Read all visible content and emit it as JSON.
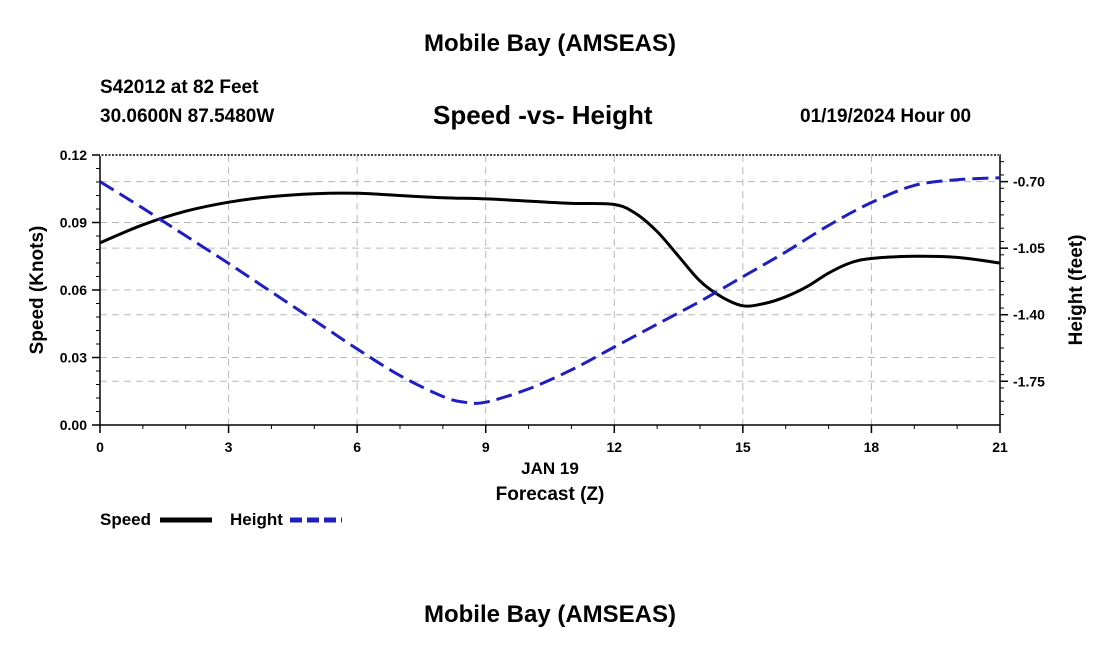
{
  "header": {
    "title": "Mobile Bay (AMSEAS)",
    "station": "S42012 at 82 Feet",
    "coords": "30.0600N  87.5480W",
    "date": "01/19/2024 Hour 00",
    "footer_title": "Mobile Bay (AMSEAS)"
  },
  "chart_data": {
    "type": "line",
    "title": "Speed -vs- Height",
    "xlabel": "Forecast (Z)",
    "xdate": "JAN 19",
    "ylabel": "Speed (Knots)",
    "y2label": "Height (feet)",
    "xlim": [
      0,
      21
    ],
    "ylim": [
      0,
      0.12
    ],
    "y2lim": [
      -1.98,
      -0.56
    ],
    "xticks": [
      "0",
      "3",
      "6",
      "9",
      "12",
      "15",
      "18",
      "21"
    ],
    "yticks": [
      "0.00",
      "0.03",
      "0.06",
      "0.09",
      "0.12"
    ],
    "y2ticks": [
      "-0.70",
      "-1.05",
      "-1.40",
      "-1.75"
    ],
    "y2tick_values": [
      -0.7,
      -1.05,
      -1.4,
      -1.75
    ],
    "grid": true,
    "legend": "bottom-left",
    "series": [
      {
        "name": "Speed",
        "axis": "left",
        "color": "#000000",
        "dash": false,
        "x": [
          0,
          1,
          2,
          3,
          4,
          5,
          6,
          7,
          8,
          9,
          10,
          11,
          12,
          12.5,
          13,
          13.5,
          14,
          14.5,
          15,
          15.5,
          16,
          16.5,
          17,
          17.5,
          18,
          19,
          20,
          21
        ],
        "values": [
          0.081,
          0.089,
          0.095,
          0.099,
          0.1015,
          0.1028,
          0.103,
          0.102,
          0.101,
          0.1005,
          0.0995,
          0.0985,
          0.098,
          0.094,
          0.086,
          0.075,
          0.064,
          0.057,
          0.053,
          0.054,
          0.057,
          0.0615,
          0.0675,
          0.072,
          0.074,
          0.075,
          0.0745,
          0.072
        ]
      },
      {
        "name": "Height",
        "axis": "right",
        "color": "#1f1fbf",
        "dash": true,
        "x": [
          0,
          1,
          2,
          3,
          4,
          5,
          6,
          7,
          8,
          8.5,
          9,
          10,
          11,
          12,
          13,
          14,
          15,
          16,
          17,
          18,
          19,
          20,
          21
        ],
        "values": [
          -0.7,
          -0.84,
          -0.985,
          -1.13,
          -1.28,
          -1.43,
          -1.58,
          -1.72,
          -1.83,
          -1.86,
          -1.86,
          -1.79,
          -1.69,
          -1.57,
          -1.45,
          -1.33,
          -1.2,
          -1.07,
          -0.93,
          -0.81,
          -0.72,
          -0.69,
          -0.68
        ]
      }
    ]
  }
}
